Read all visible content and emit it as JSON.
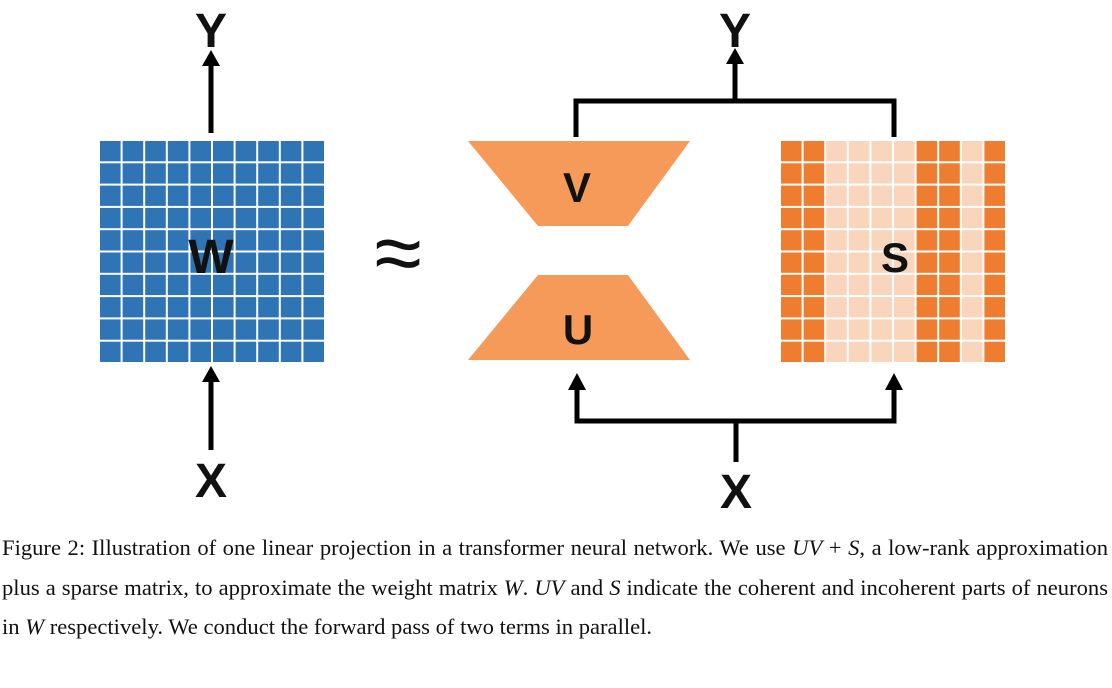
{
  "diagram": {
    "left": {
      "matrix_label": "W",
      "input_label": "X",
      "output_label": "Y"
    },
    "approx_symbol": "≈",
    "right": {
      "top_label": "V",
      "bottom_label": "U",
      "sparse_label": "S",
      "input_label": "X",
      "output_label": "Y"
    },
    "colors": {
      "dense": "#2f74b5",
      "trapezoid": "#f59a59",
      "sparse_dark": "#ef7d2f",
      "sparse_light": "#f9d5bb",
      "line": "#000000"
    }
  },
  "caption": {
    "prefix": "Figure 2: Illustration of one linear projection in a transformer neural network. We use ",
    "m1": "UV",
    "t1": " + ",
    "m2": "S",
    "t2": ", a low-rank approximation plus a sparse matrix, to approximate the weight matrix ",
    "m3": "W",
    "t3": ". ",
    "m4": "UV",
    "t4": " and ",
    "m5": "S",
    "t5": " indicate the coherent and incoherent parts of neurons in ",
    "m6": "W",
    "t6": " respectively. We conduct the forward pass of two terms in parallel."
  }
}
